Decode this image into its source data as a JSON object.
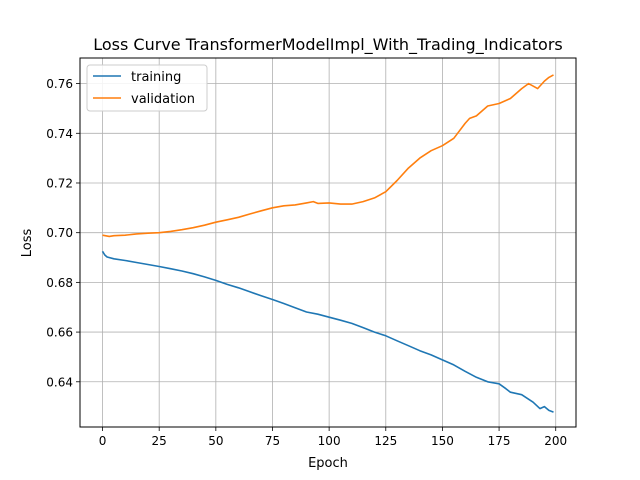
{
  "chart_data": {
    "type": "line",
    "title": "Loss Curve TransformerModelImpl_With_Trading_Indicators",
    "xlabel": "Epoch",
    "ylabel": "Loss",
    "xlim": [
      -9.95,
      208.95
    ],
    "ylim": [
      0.6218,
      0.7703
    ],
    "xticks": [
      0,
      25,
      50,
      75,
      100,
      125,
      150,
      175,
      200
    ],
    "yticks": [
      0.64,
      0.66,
      0.68,
      0.7,
      0.72,
      0.74,
      0.76
    ],
    "xtick_labels": [
      "0",
      "25",
      "50",
      "75",
      "100",
      "125",
      "150",
      "175",
      "200"
    ],
    "ytick_labels": [
      "0.64",
      "0.66",
      "0.68",
      "0.70",
      "0.72",
      "0.74",
      "0.76"
    ],
    "grid": true,
    "legend": "top-left",
    "series": [
      {
        "name": "training",
        "color": "#1f77b4",
        "x": [
          0,
          1,
          2,
          5,
          10,
          15,
          20,
          25,
          30,
          35,
          40,
          45,
          50,
          55,
          60,
          65,
          70,
          75,
          80,
          85,
          90,
          95,
          100,
          105,
          110,
          115,
          120,
          125,
          130,
          135,
          140,
          145,
          150,
          155,
          160,
          165,
          170,
          175,
          178,
          180,
          185,
          190,
          193,
          195,
          197,
          199
        ],
        "values": [
          0.6925,
          0.691,
          0.6902,
          0.6895,
          0.6888,
          0.688,
          0.6872,
          0.6864,
          0.6855,
          0.6846,
          0.6835,
          0.6822,
          0.6808,
          0.6792,
          0.6778,
          0.6762,
          0.6746,
          0.6731,
          0.6715,
          0.6698,
          0.6681,
          0.6672,
          0.666,
          0.6648,
          0.6635,
          0.6618,
          0.66,
          0.6585,
          0.6565,
          0.6545,
          0.6525,
          0.6508,
          0.6488,
          0.6468,
          0.6442,
          0.6418,
          0.64,
          0.6392,
          0.6372,
          0.6358,
          0.6348,
          0.6318,
          0.6292,
          0.63,
          0.6285,
          0.6278
        ]
      },
      {
        "name": "validation",
        "color": "#ff7f0e",
        "x": [
          0,
          3,
          5,
          10,
          15,
          20,
          25,
          30,
          35,
          40,
          45,
          50,
          55,
          60,
          65,
          70,
          75,
          80,
          85,
          90,
          93,
          95,
          100,
          105,
          110,
          115,
          120,
          125,
          130,
          135,
          140,
          145,
          150,
          155,
          160,
          162,
          165,
          170,
          175,
          180,
          185,
          188,
          190,
          192,
          195,
          197,
          199
        ],
        "values": [
          0.699,
          0.6985,
          0.6988,
          0.699,
          0.6995,
          0.6998,
          0.7,
          0.7005,
          0.7012,
          0.702,
          0.703,
          0.7042,
          0.7052,
          0.7062,
          0.7075,
          0.7088,
          0.71,
          0.7108,
          0.7112,
          0.712,
          0.7125,
          0.7118,
          0.712,
          0.7115,
          0.7115,
          0.7125,
          0.714,
          0.7165,
          0.721,
          0.726,
          0.73,
          0.733,
          0.735,
          0.738,
          0.744,
          0.746,
          0.747,
          0.751,
          0.752,
          0.754,
          0.758,
          0.76,
          0.759,
          0.758,
          0.761,
          0.7625,
          0.7635
        ]
      }
    ]
  }
}
